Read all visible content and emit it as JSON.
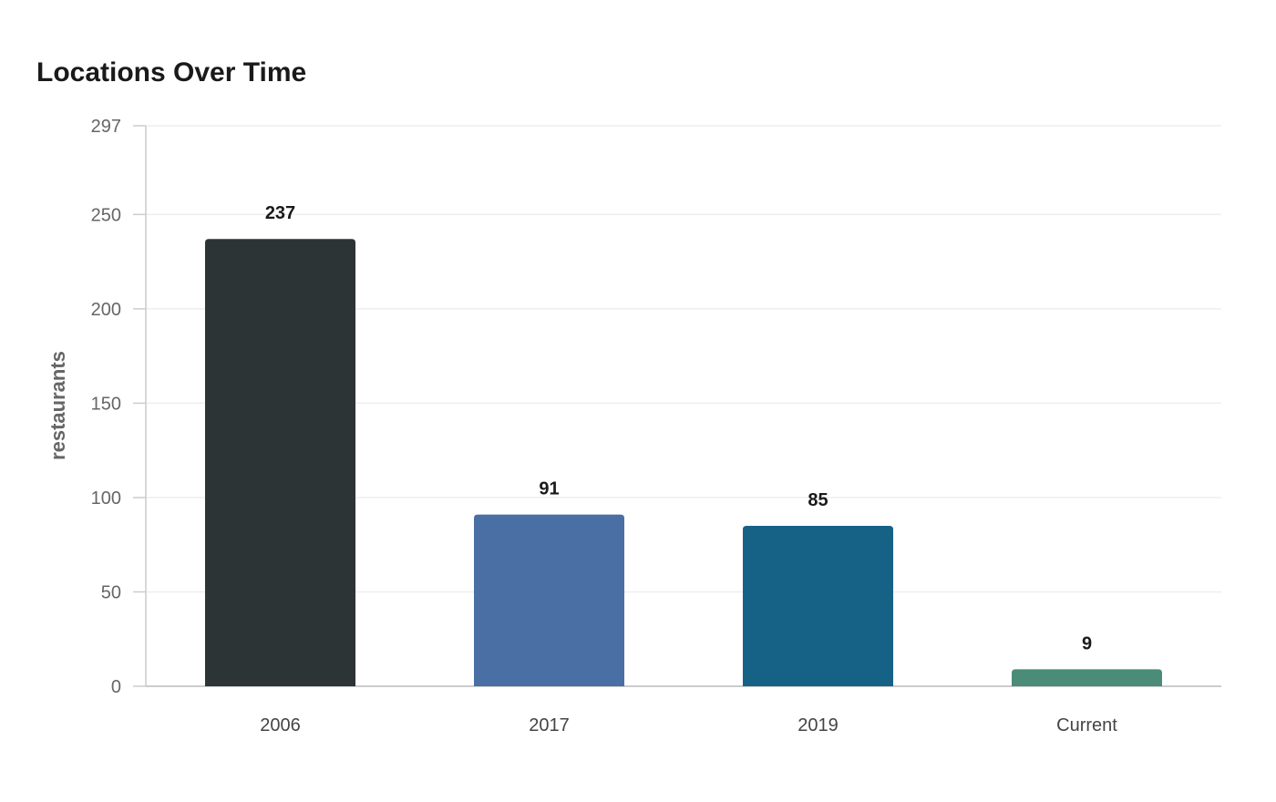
{
  "chart_data": {
    "type": "bar",
    "title": "Locations Over Time",
    "xlabel": "",
    "ylabel": "restaurants",
    "categories": [
      "2006",
      "2017",
      "2019",
      "Current"
    ],
    "values": [
      237,
      91,
      85,
      9
    ],
    "data_labels": [
      "237",
      "91",
      "85",
      "9"
    ],
    "colors": [
      "#2d3436",
      "#4a6fa5",
      "#166186",
      "#4a8c78"
    ],
    "ylim": [
      0,
      297
    ],
    "yticks": [
      0,
      50,
      100,
      150,
      200,
      250,
      297
    ],
    "grid": true,
    "legend": "none"
  },
  "style": {
    "gridline_color": "#eeeeee",
    "axis_color": "#cccccc"
  }
}
